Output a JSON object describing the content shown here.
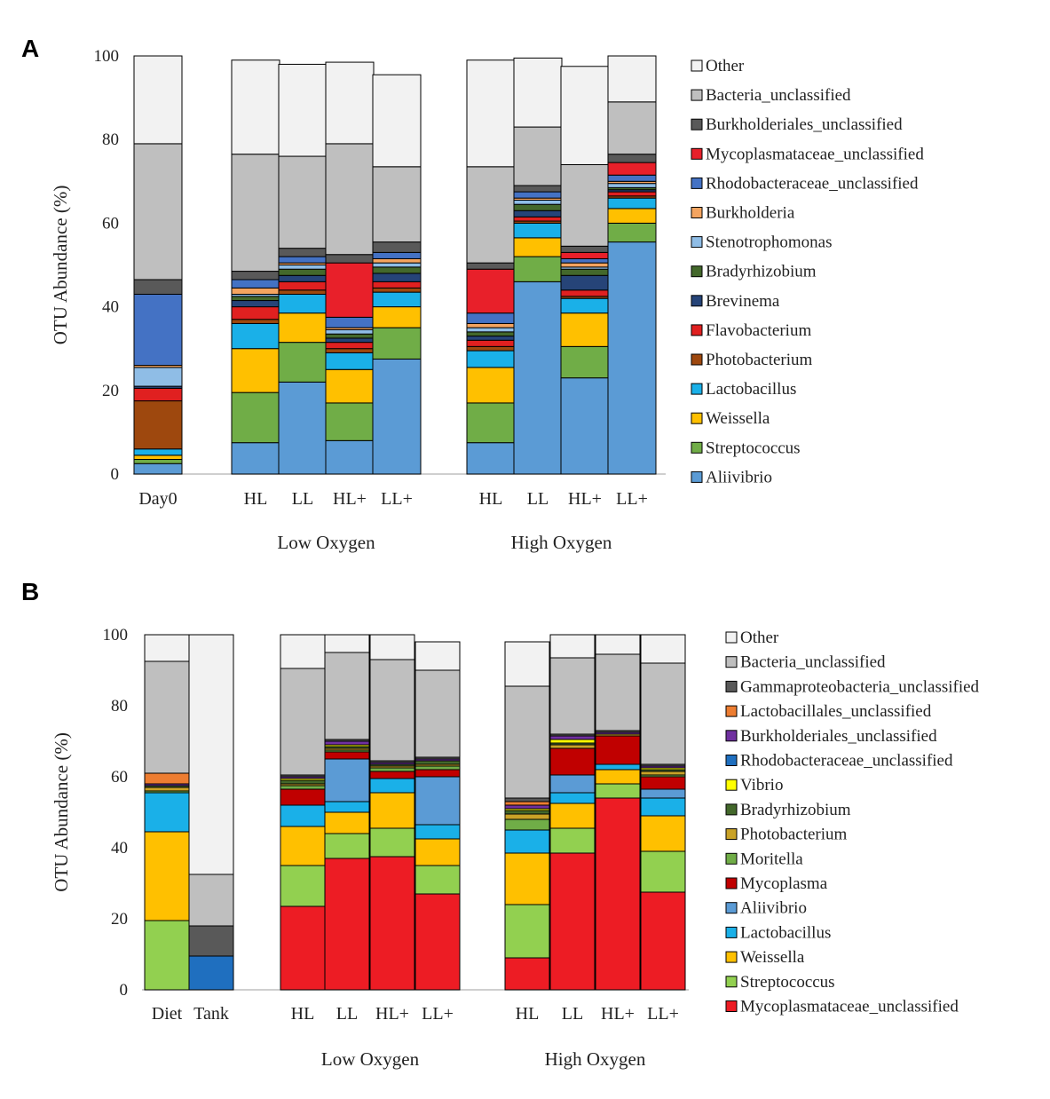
{
  "chart_data": [
    {
      "panel": "A",
      "type": "stacked-bar",
      "ylabel": "OTU Abundance (%)",
      "ylim": [
        0,
        100
      ],
      "yticks": [
        0,
        20,
        40,
        60,
        80,
        100
      ],
      "grid": false,
      "legend_position": "right",
      "series": [
        {
          "name": "Aliivibrio",
          "color": "#5b9bd5"
        },
        {
          "name": "Streptococcus",
          "color": "#70ad47"
        },
        {
          "name": "Weissella",
          "color": "#ffc000"
        },
        {
          "name": "Lactobacillus",
          "color": "#1ab0e8"
        },
        {
          "name": "Photobacterium",
          "color": "#9e480e"
        },
        {
          "name": "Flavobacterium",
          "color": "#e02020"
        },
        {
          "name": "Brevinema",
          "color": "#264478"
        },
        {
          "name": "Bradyrhizobium",
          "color": "#43682b"
        },
        {
          "name": "Stenotrophomonas",
          "color": "#8fbde6"
        },
        {
          "name": "Burkholderia",
          "color": "#f4a460"
        },
        {
          "name": "Rhodobacteraceae_unclassified",
          "color": "#4472c4"
        },
        {
          "name": "Mycoplasmataceae_unclassified",
          "color": "#e8202a"
        },
        {
          "name": "Burkholderiales_unclassified",
          "color": "#595959"
        },
        {
          "name": "Bacteria_unclassified",
          "color": "#bfbfbf"
        },
        {
          "name": "Other",
          "color": "#f2f2f2"
        }
      ],
      "groups": [
        {
          "label": "",
          "bars": [
            {
              "label": "Day0",
              "values": [
                2.5,
                1,
                1,
                1.5,
                11.5,
                3,
                0.5,
                0,
                4.5,
                0.5,
                17,
                0,
                3.5,
                32.5,
                21
              ]
            }
          ]
        },
        {
          "label": "Low Oxygen",
          "bars": [
            {
              "label": "HL",
              "values": [
                7.5,
                12,
                10.5,
                6,
                1,
                3,
                1.5,
                1,
                0.5,
                1.5,
                2,
                0,
                2,
                28,
                22.5
              ]
            },
            {
              "label": "LL",
              "values": [
                22,
                9.5,
                7,
                4.5,
                1,
                2,
                1.5,
                1.5,
                1,
                0.5,
                1.5,
                0,
                2,
                22,
                22
              ]
            },
            {
              "label": "HL+",
              "values": [
                8,
                9,
                8,
                4,
                1,
                1.5,
                1,
                1,
                1,
                0.5,
                2.5,
                13,
                2,
                26.5,
                19.5
              ]
            },
            {
              "label": "LL+",
              "values": [
                27.5,
                7.5,
                5,
                3.5,
                1,
                1.5,
                2,
                1.5,
                1,
                1,
                1.5,
                0,
                2.5,
                18,
                22
              ]
            }
          ]
        },
        {
          "label": "High Oxygen",
          "bars": [
            {
              "label": "HL",
              "values": [
                7.5,
                9.5,
                8.5,
                4,
                1,
                1.5,
                1,
                1,
                1,
                1,
                2.5,
                10.5,
                1.5,
                23,
                25.5
              ]
            },
            {
              "label": "LL",
              "values": [
                46,
                6,
                4.5,
                3.5,
                0.5,
                1,
                1.5,
                1.5,
                1,
                0.5,
                1.5,
                0,
                1.5,
                14,
                16.5
              ]
            },
            {
              "label": "HL+",
              "values": [
                23,
                7.5,
                8,
                3.5,
                0.5,
                1.5,
                3.5,
                1.5,
                0.5,
                1,
                1,
                1.5,
                1.5,
                19.5,
                23.5
              ]
            },
            {
              "label": "LL+",
              "values": [
                55.5,
                4.5,
                3.5,
                2.5,
                0.5,
                1,
                0.5,
                0.5,
                1,
                0.5,
                1.5,
                3,
                2,
                12.5,
                11
              ]
            }
          ]
        }
      ]
    },
    {
      "panel": "B",
      "type": "stacked-bar",
      "ylabel": "OTU Abundance (%)",
      "ylim": [
        0,
        100
      ],
      "yticks": [
        0,
        20,
        40,
        60,
        80,
        100
      ],
      "grid": false,
      "legend_position": "right",
      "series": [
        {
          "name": "Mycoplasmataceae_unclassified",
          "color": "#ed1c24"
        },
        {
          "name": "Streptococcus",
          "color": "#92d050"
        },
        {
          "name": "Weissella",
          "color": "#ffc000"
        },
        {
          "name": "Lactobacillus",
          "color": "#1ab0e8"
        },
        {
          "name": "Aliivibrio",
          "color": "#5b9bd5"
        },
        {
          "name": "Mycoplasma",
          "color": "#c00000"
        },
        {
          "name": "Moritella",
          "color": "#70ad47"
        },
        {
          "name": "Photobacterium",
          "color": "#c9a227"
        },
        {
          "name": "Bradyrhizobium",
          "color": "#43682b"
        },
        {
          "name": "Vibrio",
          "color": "#ffff00"
        },
        {
          "name": "Rhodobacteraceae_unclassified",
          "color": "#1f6fbf"
        },
        {
          "name": "Burkholderiales_unclassified",
          "color": "#7030a0"
        },
        {
          "name": "Lactobacillales_unclassified",
          "color": "#ed7d31"
        },
        {
          "name": "Gammaproteobacteria_unclassified",
          "color": "#595959"
        },
        {
          "name": "Bacteria_unclassified",
          "color": "#bfbfbf"
        },
        {
          "name": "Other",
          "color": "#f2f2f2"
        }
      ],
      "groups": [
        {
          "label": "",
          "bars": [
            {
              "label": "Diet",
              "values": [
                0,
                19.5,
                25,
                11,
                0,
                0,
                0.5,
                1,
                0.5,
                0,
                0,
                0.5,
                3,
                0,
                31.5,
                7.5
              ]
            },
            {
              "label": "Tank",
              "values": [
                0,
                0,
                0,
                0,
                0,
                0,
                0,
                0,
                0,
                0,
                9.5,
                0,
                0,
                8.5,
                14.5,
                67.5
              ]
            }
          ]
        },
        {
          "label": "Low Oxygen",
          "bars": [
            {
              "label": "HL",
              "values": [
                23.5,
                11.5,
                11,
                6,
                0,
                4.5,
                1,
                0.5,
                1,
                0.5,
                0,
                0.5,
                0,
                0.5,
                30,
                9.5
              ]
            },
            {
              "label": "LL",
              "values": [
                37,
                7,
                6,
                3,
                12,
                2,
                0.5,
                0.5,
                0.5,
                0.5,
                0,
                1,
                0,
                0.5,
                24.5,
                5
              ]
            },
            {
              "label": "HL+",
              "values": [
                37.5,
                8,
                10,
                4,
                0,
                2,
                1,
                0.5,
                0.5,
                0,
                0,
                0.5,
                0,
                0.5,
                28.5,
                7
              ]
            },
            {
              "label": "LL+",
              "values": [
                27,
                8,
                7.5,
                4,
                13.5,
                2,
                1,
                0.5,
                1,
                0,
                0,
                0.5,
                0,
                0.5,
                24.5,
                8
              ]
            }
          ]
        },
        {
          "label": "High Oxygen",
          "bars": [
            {
              "label": "HL",
              "values": [
                9,
                15,
                14.5,
                6.5,
                0,
                0,
                3,
                1.5,
                1,
                0.5,
                0,
                1,
                1,
                1,
                31.5,
                12.5
              ]
            },
            {
              "label": "LL",
              "values": [
                38.5,
                7,
                7,
                3,
                5,
                7.5,
                0,
                1,
                0.5,
                1,
                0,
                1,
                0,
                0.5,
                21.5,
                6.5
              ]
            },
            {
              "label": "HL+",
              "values": [
                54,
                4,
                4,
                1.5,
                0,
                8,
                0,
                0.5,
                0,
                0,
                0,
                0.5,
                0,
                0.5,
                21.5,
                5.5
              ]
            },
            {
              "label": "LL+",
              "values": [
                27.5,
                11.5,
                10,
                5,
                2.5,
                3.5,
                0.5,
                1,
                0.5,
                0.5,
                0,
                0.5,
                0,
                0.5,
                28.5,
                8
              ]
            }
          ]
        }
      ]
    }
  ]
}
